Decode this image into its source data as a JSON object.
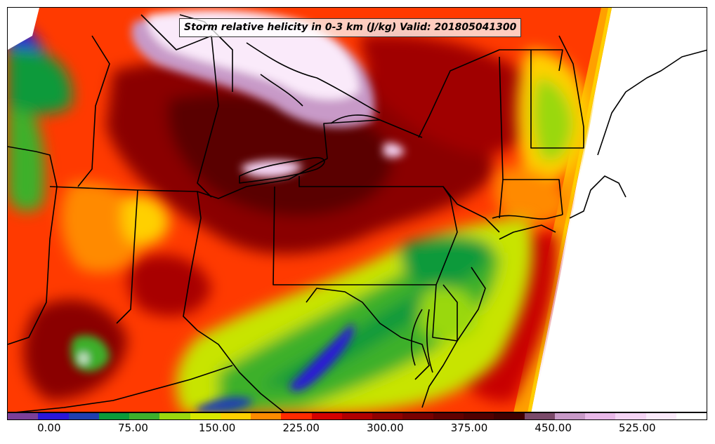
{
  "title": "Storm relative helicity in 0-3 km (J/kg) Valid: 201805041300",
  "colorbar": {
    "colors": [
      "#7b3f98",
      "#2a17d8",
      "#1f3fb0",
      "#0b9a3a",
      "#3db02c",
      "#9ad80e",
      "#d8e800",
      "#ffd000",
      "#ff8a00",
      "#ff2a00",
      "#d40000",
      "#b00000",
      "#900000",
      "#780000",
      "#600000",
      "#500000",
      "#400000",
      "#7a4a6a",
      "#c89ac8",
      "#e8b8e8",
      "#f4d4f4",
      "#faeafa",
      "#ffffff"
    ],
    "ticks": [
      "0.00",
      "75.00",
      "150.00",
      "225.00",
      "300.00",
      "375.00",
      "450.00",
      "525.00"
    ],
    "tick_values": [
      0,
      75,
      150,
      225,
      300,
      375,
      450,
      525
    ],
    "min": -37.5,
    "max": 587.5
  },
  "legend_labels": {
    "color_scale": "helicity-colorbar"
  }
}
